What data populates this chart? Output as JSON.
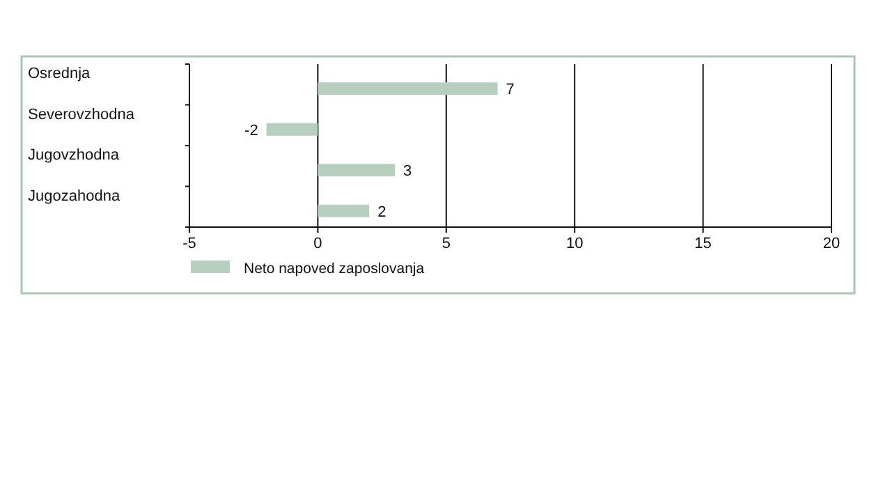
{
  "chart_data": {
    "type": "bar",
    "orientation": "horizontal",
    "categories": [
      "Osrednja",
      "Severovzhodna",
      "Jugovzhodna",
      "Jugozahodna"
    ],
    "series": [
      {
        "name": "Neto napoved zaposlovanja",
        "color": "#b7cfbf",
        "values": [
          7,
          -2,
          3,
          2
        ]
      }
    ],
    "xlim": [
      -5,
      20
    ],
    "xticks": [
      -5,
      0,
      5,
      10,
      15,
      20
    ],
    "grid": "x",
    "legend": "bottom",
    "data_labels": true
  }
}
